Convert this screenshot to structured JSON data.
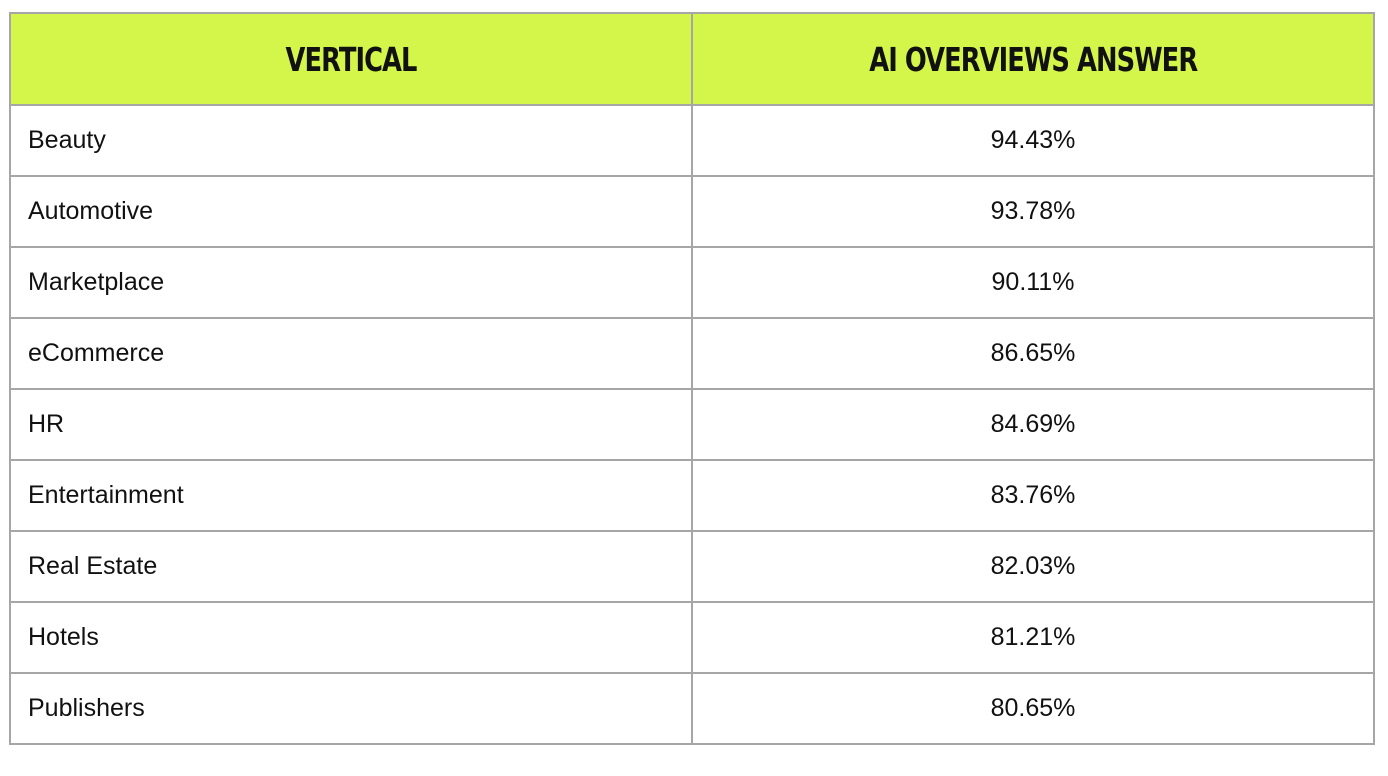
{
  "table": {
    "headers": [
      "VERTICAL",
      "AI OVERVIEWS ANSWER"
    ],
    "rows": [
      {
        "vertical": "Beauty",
        "answer": "94.43%"
      },
      {
        "vertical": "Automotive",
        "answer": "93.78%"
      },
      {
        "vertical": "Marketplace",
        "answer": "90.11%"
      },
      {
        "vertical": "eCommerce",
        "answer": "86.65%"
      },
      {
        "vertical": "HR",
        "answer": "84.69%"
      },
      {
        "vertical": "Entertainment",
        "answer": "83.76%"
      },
      {
        "vertical": "Real Estate",
        "answer": "82.03%"
      },
      {
        "vertical": "Hotels",
        "answer": "81.21%"
      },
      {
        "vertical": "Publishers",
        "answer": "80.65%"
      }
    ]
  },
  "colors": {
    "header_background": "#d4f54a",
    "border": "#a6a6a6",
    "text": "#111111"
  }
}
